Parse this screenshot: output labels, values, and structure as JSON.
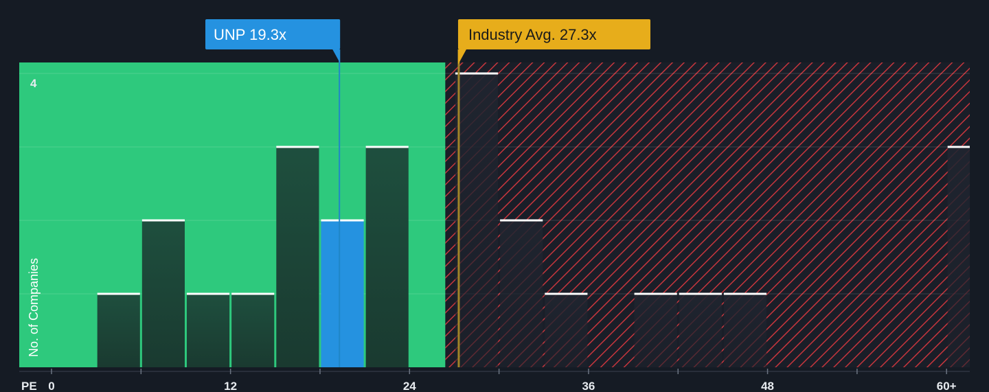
{
  "chart_data": {
    "type": "bar",
    "x_axis_label": "PE",
    "y_axis_label": "No. of Companies",
    "x_tick_labels": [
      {
        "value": 0,
        "label": "0"
      },
      {
        "value": 12,
        "label": "12"
      },
      {
        "value": 24,
        "label": "24"
      },
      {
        "value": 36,
        "label": "36"
      },
      {
        "value": 48,
        "label": "48"
      },
      {
        "value": 60,
        "label": "60+"
      }
    ],
    "x_minor_ticks": [
      0,
      6,
      12,
      18,
      24,
      30,
      36,
      42,
      48,
      54,
      60
    ],
    "y_tick_labels": [
      {
        "value": 4,
        "label": "4"
      }
    ],
    "xlim": [
      0,
      61.5
    ],
    "ylim": [
      0,
      4.15
    ],
    "bin_width": 3,
    "bins": [
      {
        "x0": 3,
        "count": 1
      },
      {
        "x0": 6,
        "count": 2
      },
      {
        "x0": 9,
        "count": 1
      },
      {
        "x0": 12,
        "count": 1
      },
      {
        "x0": 15,
        "count": 3
      },
      {
        "x0": 18,
        "count": 2,
        "highlight": true
      },
      {
        "x0": 21,
        "count": 3
      },
      {
        "x0": 27,
        "count": 4
      },
      {
        "x0": 30,
        "count": 2
      },
      {
        "x0": 33,
        "count": 1
      },
      {
        "x0": 39,
        "count": 1
      },
      {
        "x0": 42,
        "count": 1
      },
      {
        "x0": 45,
        "count": 1
      },
      {
        "x0": 60,
        "count": 3
      }
    ],
    "company": {
      "label": "UNP 19.3x",
      "value": 19.3
    },
    "industry_avg": {
      "label": "Industry Avg. 27.3x",
      "value": 27.3
    },
    "undervalued_region_end": 26.4,
    "colors": {
      "background": "#151b24",
      "undervalued": "#2ec97d",
      "bar": "#1e4d3c",
      "highlight_bar": "#2592e0",
      "overvalued_hatch": "#c8363d",
      "company_callout": "#2592e0",
      "industry_callout": "#e7ad1b",
      "bar_top": "#ffffff"
    }
  }
}
